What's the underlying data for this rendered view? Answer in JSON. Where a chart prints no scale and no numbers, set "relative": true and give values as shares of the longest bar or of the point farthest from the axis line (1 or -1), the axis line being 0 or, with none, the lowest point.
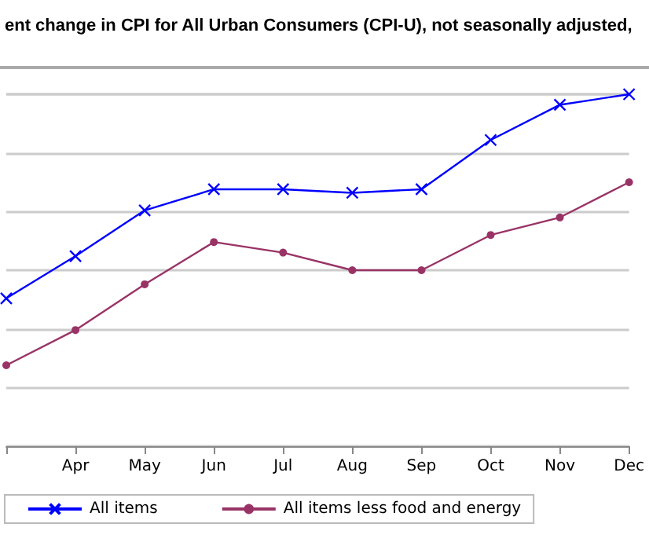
{
  "chart_data": {
    "type": "line",
    "title": "ent change in CPI for All Urban Consumers (CPI-U), not seasonally adjusted,",
    "categories": [
      null,
      "Apr",
      "May",
      "Jun",
      "Jul",
      "Aug",
      "Sep",
      "Oct",
      "Nov",
      "Dec"
    ],
    "relative": true,
    "grid": "y",
    "legend": "bottom",
    "series": [
      {
        "name": "All items",
        "color": "#0000ff",
        "marker": "cross",
        "values": [
          0.42,
          0.54,
          0.67,
          0.73,
          0.73,
          0.72,
          0.73,
          0.87,
          0.97,
          1
        ]
      },
      {
        "name": "All items less food and energy",
        "color": "#993366",
        "marker": "circle",
        "values": [
          0.23,
          0.33,
          0.46,
          0.58,
          0.55,
          0.5,
          0.5,
          0.6,
          0.65,
          0.75
        ]
      }
    ]
  }
}
